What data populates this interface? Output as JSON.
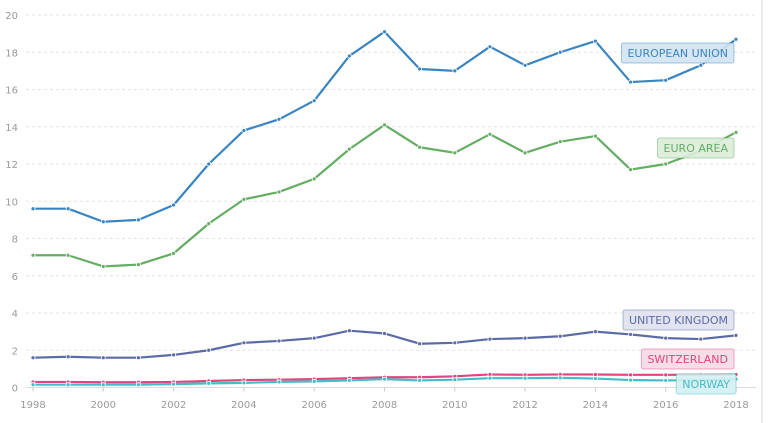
{
  "chart_data": {
    "type": "line",
    "x": [
      1998,
      1999,
      2000,
      2001,
      2002,
      2003,
      2004,
      2005,
      2006,
      2007,
      2008,
      2009,
      2010,
      2011,
      2012,
      2013,
      2014,
      2015,
      2016,
      2017,
      2018
    ],
    "x_ticks": [
      "1998",
      "2000",
      "2002",
      "2004",
      "2006",
      "2008",
      "2010",
      "2012",
      "2014",
      "2016",
      "2018"
    ],
    "y_ticks": [
      "0",
      "2",
      "4",
      "6",
      "8",
      "10",
      "12",
      "14",
      "16",
      "18",
      "20"
    ],
    "ylim": [
      0,
      20
    ],
    "grid": true,
    "legend": "inline-right",
    "series": [
      {
        "name": "EUROPEAN UNION",
        "color": "#3a85c1",
        "label_bg": "#d3e3f2",
        "values": [
          9.6,
          9.6,
          8.9,
          9.0,
          9.8,
          12.0,
          13.8,
          14.4,
          15.4,
          17.8,
          19.1,
          17.1,
          17.0,
          18.3,
          17.3,
          18.0,
          18.6,
          16.4,
          16.5,
          17.3,
          18.7
        ]
      },
      {
        "name": "EURO AREA",
        "color": "#64ad63",
        "label_bg": "#dcecd9",
        "values": [
          7.1,
          7.1,
          6.5,
          6.6,
          7.2,
          8.8,
          10.1,
          10.5,
          11.2,
          12.8,
          14.1,
          12.9,
          12.6,
          13.6,
          12.6,
          13.2,
          13.5,
          11.7,
          12.0,
          12.7,
          13.7
        ]
      },
      {
        "name": "UNITED KINGDOM",
        "color": "#5c6ba5",
        "label_bg": "#dfe1ee",
        "values": [
          1.6,
          1.65,
          1.6,
          1.6,
          1.75,
          2.0,
          2.4,
          2.5,
          2.65,
          3.05,
          2.9,
          2.35,
          2.4,
          2.6,
          2.65,
          2.75,
          3.0,
          2.85,
          2.65,
          2.6,
          2.8
        ]
      },
      {
        "name": "SWITZERLAND",
        "color": "#e0457f",
        "label_bg": "#f6d9e4",
        "values": [
          0.3,
          0.3,
          0.28,
          0.28,
          0.3,
          0.35,
          0.4,
          0.42,
          0.45,
          0.5,
          0.55,
          0.55,
          0.6,
          0.7,
          0.68,
          0.7,
          0.7,
          0.68,
          0.68,
          0.68,
          0.7
        ]
      },
      {
        "name": "NORWAY",
        "color": "#45bcc8",
        "label_bg": "#d4eff2",
        "values": [
          0.15,
          0.15,
          0.15,
          0.15,
          0.18,
          0.22,
          0.25,
          0.3,
          0.33,
          0.38,
          0.45,
          0.38,
          0.42,
          0.5,
          0.5,
          0.52,
          0.48,
          0.4,
          0.38,
          0.4,
          0.45
        ]
      }
    ]
  }
}
